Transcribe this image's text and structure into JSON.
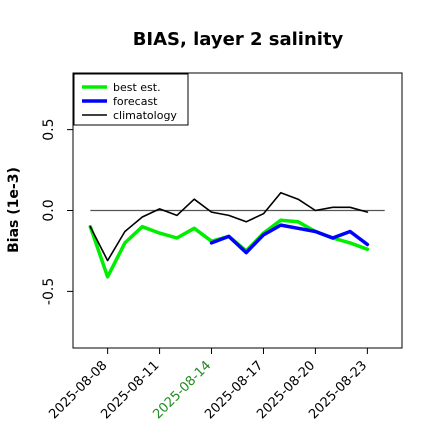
{
  "chart_data": {
    "type": "line",
    "title": "BIAS, layer 2 salinity",
    "xlabel": "",
    "ylabel": "Bias (1e-3)",
    "ylim": [
      -0.85,
      0.85
    ],
    "x_range": [
      "2025-08-06",
      "2025-08-25"
    ],
    "y_ticks": [
      "-0.5",
      "0.0",
      "0.5"
    ],
    "y_tick_values": [
      -0.5,
      0.0,
      0.5
    ],
    "x_tick_dates": [
      "2025-08-08",
      "2025-08-11",
      "2025-08-14",
      "2025-08-17",
      "2025-08-20",
      "2025-08-23"
    ],
    "x_tick_labels": [
      "2025-08-08",
      "2025-08-11",
      "2025-08-14",
      "2025-08-17",
      "2025-08-20",
      "2025-08-23"
    ],
    "x_tick_colors": [
      "#000000",
      "#000000",
      "#228b22",
      "#000000",
      "#000000",
      "#000000"
    ],
    "reference_line": 0.0,
    "legend_position": "top-left",
    "grid": false,
    "series": [
      {
        "name": "best est.",
        "color": "#00ee00",
        "dates": [
          "2025-08-07",
          "2025-08-08",
          "2025-08-09",
          "2025-08-10",
          "2025-08-11",
          "2025-08-12",
          "2025-08-13",
          "2025-08-14",
          "2025-08-15",
          "2025-08-16",
          "2025-08-17",
          "2025-08-18",
          "2025-08-19",
          "2025-08-20",
          "2025-08-21",
          "2025-08-22",
          "2025-08-23"
        ],
        "values": [
          -0.1,
          -0.41,
          -0.2,
          -0.1,
          -0.14,
          -0.17,
          -0.11,
          -0.19,
          -0.16,
          -0.25,
          -0.14,
          -0.06,
          -0.07,
          -0.13,
          -0.17,
          -0.2,
          -0.24
        ]
      },
      {
        "name": "forecast",
        "color": "#0000ff",
        "dates": [
          "2025-08-14",
          "2025-08-15",
          "2025-08-16",
          "2025-08-17",
          "2025-08-18",
          "2025-08-19",
          "2025-08-20",
          "2025-08-21",
          "2025-08-22",
          "2025-08-23"
        ],
        "values": [
          -0.2,
          -0.16,
          -0.26,
          -0.15,
          -0.09,
          -0.11,
          -0.13,
          -0.17,
          -0.13,
          -0.21
        ]
      },
      {
        "name": "climatology",
        "color": "#000000",
        "dates": [
          "2025-08-07",
          "2025-08-08",
          "2025-08-09",
          "2025-08-10",
          "2025-08-11",
          "2025-08-12",
          "2025-08-13",
          "2025-08-14",
          "2025-08-15",
          "2025-08-16",
          "2025-08-17",
          "2025-08-18",
          "2025-08-19",
          "2025-08-20",
          "2025-08-21",
          "2025-08-22",
          "2025-08-23"
        ],
        "values": [
          -0.1,
          -0.31,
          -0.13,
          -0.04,
          0.01,
          -0.03,
          0.07,
          -0.01,
          -0.03,
          -0.07,
          -0.02,
          0.11,
          0.07,
          0.0,
          0.02,
          0.02,
          -0.01
        ]
      }
    ]
  }
}
